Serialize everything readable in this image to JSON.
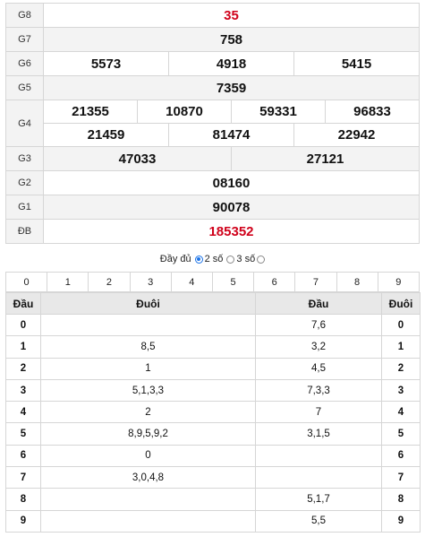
{
  "prizes": {
    "g8": {
      "label": "G8",
      "values": [
        "35"
      ]
    },
    "g7": {
      "label": "G7",
      "values": [
        "758"
      ]
    },
    "g6": {
      "label": "G6",
      "values": [
        "5573",
        "4918",
        "5415"
      ]
    },
    "g5": {
      "label": "G5",
      "values": [
        "7359"
      ]
    },
    "g4": {
      "label": "G4",
      "values": [
        "21355",
        "10870",
        "59331",
        "96833",
        "21459",
        "81474",
        "22942"
      ]
    },
    "g3": {
      "label": "G3",
      "values": [
        "47033",
        "27121"
      ]
    },
    "g2": {
      "label": "G2",
      "values": [
        "08160"
      ]
    },
    "g1": {
      "label": "G1",
      "values": [
        "90078"
      ]
    },
    "db": {
      "label": "ĐB",
      "values": [
        "185352"
      ]
    }
  },
  "colors": {
    "highlight": "#d0021b",
    "radio": "#1a73e8"
  },
  "toggle": {
    "full_label": "Đầy đủ",
    "two_label": "2 số",
    "three_label": "3 số",
    "selected": "2 số"
  },
  "digits": [
    "0",
    "1",
    "2",
    "3",
    "4",
    "5",
    "6",
    "7",
    "8",
    "9"
  ],
  "loto": {
    "headers": [
      "Đầu",
      "Đuôi",
      "Đầu",
      "Đuôi"
    ],
    "rows": [
      {
        "dau": "0",
        "duoi": "",
        "dau2": "7,6",
        "duoi2": "0"
      },
      {
        "dau": "1",
        "duoi": "8,5",
        "dau2": "3,2",
        "duoi2": "1"
      },
      {
        "dau": "2",
        "duoi": "1",
        "dau2": "4,5",
        "duoi2": "2"
      },
      {
        "dau": "3",
        "duoi": "5,1,3,3",
        "dau2": "7,3,3",
        "duoi2": "3"
      },
      {
        "dau": "4",
        "duoi": "2",
        "dau2": "7",
        "duoi2": "4"
      },
      {
        "dau": "5",
        "duoi": "8,9,5,9,2",
        "dau2": "3,1,5",
        "duoi2": "5"
      },
      {
        "dau": "6",
        "duoi": "0",
        "dau2": "",
        "duoi2": "6"
      },
      {
        "dau": "7",
        "duoi": "3,0,4,8",
        "dau2": "",
        "duoi2": "7"
      },
      {
        "dau": "8",
        "duoi": "",
        "dau2": "5,1,7",
        "duoi2": "8"
      },
      {
        "dau": "9",
        "duoi": "",
        "dau2": "5,5",
        "duoi2": "9"
      }
    ]
  }
}
